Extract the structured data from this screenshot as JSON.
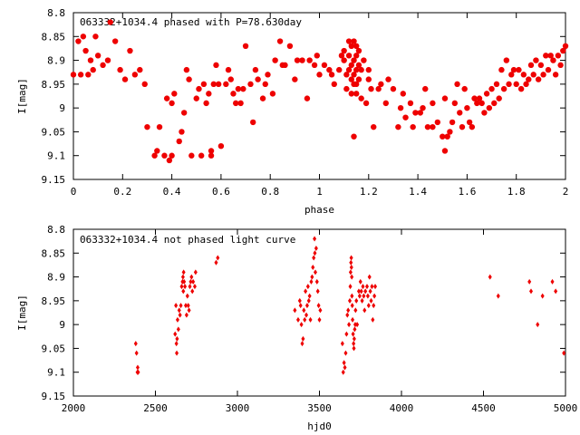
{
  "chart_data": [
    {
      "type": "scatter",
      "title": "063332+1034.4 phased with P=78.630day",
      "xlabel": "phase",
      "ylabel": "I[mag]",
      "xlim": [
        0,
        2
      ],
      "ylim": [
        8.8,
        9.15
      ],
      "y_reversed": true,
      "grid": false,
      "x_ticks": [
        "0",
        "0.2",
        "0.4",
        "0.6",
        "0.8",
        "1",
        "1.2",
        "1.4",
        "1.6",
        "1.8",
        "2"
      ],
      "y_ticks": [
        "8.8",
        "8.85",
        "8.9",
        "8.95",
        "9",
        "9.05",
        "9.1",
        "9.15"
      ],
      "marker_color": "#ee0000",
      "marker": "filled-circle",
      "points": [
        [
          0.0,
          8.93
        ],
        [
          0.02,
          8.86
        ],
        [
          0.03,
          8.93
        ],
        [
          0.04,
          8.85
        ],
        [
          0.05,
          8.88
        ],
        [
          0.06,
          8.93
        ],
        [
          0.07,
          8.9
        ],
        [
          0.08,
          8.92
        ],
        [
          0.09,
          8.85
        ],
        [
          0.1,
          8.89
        ],
        [
          0.12,
          8.91
        ],
        [
          0.14,
          8.9
        ],
        [
          0.15,
          8.82
        ],
        [
          0.17,
          8.86
        ],
        [
          0.19,
          8.92
        ],
        [
          0.21,
          8.94
        ],
        [
          0.23,
          8.88
        ],
        [
          0.25,
          8.93
        ],
        [
          0.27,
          8.92
        ],
        [
          0.29,
          8.95
        ],
        [
          0.3,
          9.04
        ],
        [
          0.33,
          9.1
        ],
        [
          0.34,
          9.09
        ],
        [
          0.35,
          9.04
        ],
        [
          0.37,
          9.1
        ],
        [
          0.38,
          8.98
        ],
        [
          0.39,
          9.11
        ],
        [
          0.4,
          9.1
        ],
        [
          0.4,
          8.99
        ],
        [
          0.41,
          8.97
        ],
        [
          0.43,
          9.07
        ],
        [
          0.44,
          9.05
        ],
        [
          0.45,
          9.01
        ],
        [
          0.46,
          8.92
        ],
        [
          0.47,
          8.94
        ],
        [
          0.48,
          9.1
        ],
        [
          0.5,
          8.98
        ],
        [
          0.51,
          8.96
        ],
        [
          0.52,
          9.1
        ],
        [
          0.53,
          8.95
        ],
        [
          0.54,
          8.99
        ],
        [
          0.55,
          8.97
        ],
        [
          0.56,
          9.1
        ],
        [
          0.56,
          9.09
        ],
        [
          0.57,
          8.95
        ],
        [
          0.58,
          8.91
        ],
        [
          0.59,
          8.95
        ],
        [
          0.6,
          9.08
        ],
        [
          0.62,
          8.95
        ],
        [
          0.63,
          8.92
        ],
        [
          0.64,
          8.94
        ],
        [
          0.65,
          8.97
        ],
        [
          0.66,
          8.99
        ],
        [
          0.67,
          8.96
        ],
        [
          0.68,
          8.99
        ],
        [
          0.69,
          8.96
        ],
        [
          0.7,
          8.87
        ],
        [
          0.72,
          8.95
        ],
        [
          0.73,
          9.03
        ],
        [
          0.74,
          8.92
        ],
        [
          0.75,
          8.94
        ],
        [
          0.77,
          8.98
        ],
        [
          0.78,
          8.95
        ],
        [
          0.79,
          8.93
        ],
        [
          0.81,
          8.97
        ],
        [
          0.82,
          8.9
        ],
        [
          0.84,
          8.86
        ],
        [
          0.85,
          8.91
        ],
        [
          0.86,
          8.91
        ],
        [
          0.88,
          8.87
        ],
        [
          0.9,
          8.94
        ],
        [
          0.91,
          8.9
        ],
        [
          0.93,
          8.9
        ],
        [
          0.95,
          8.98
        ],
        [
          0.96,
          8.9
        ],
        [
          0.98,
          8.91
        ],
        [
          0.99,
          8.89
        ],
        [
          1.0,
          8.93
        ],
        [
          1.02,
          8.91
        ],
        [
          1.04,
          8.92
        ],
        [
          1.05,
          8.93
        ],
        [
          1.06,
          8.95
        ],
        [
          1.08,
          8.92
        ],
        [
          1.09,
          8.89
        ],
        [
          1.1,
          8.88
        ],
        [
          1.1,
          8.9
        ],
        [
          1.11,
          8.93
        ],
        [
          1.11,
          8.96
        ],
        [
          1.12,
          8.86
        ],
        [
          1.12,
          8.89
        ],
        [
          1.12,
          8.92
        ],
        [
          1.13,
          8.87
        ],
        [
          1.13,
          8.91
        ],
        [
          1.13,
          8.94
        ],
        [
          1.13,
          8.97
        ],
        [
          1.14,
          8.86
        ],
        [
          1.14,
          8.9
        ],
        [
          1.14,
          8.93
        ],
        [
          1.14,
          8.95
        ],
        [
          1.14,
          9.06
        ],
        [
          1.15,
          8.87
        ],
        [
          1.15,
          8.89
        ],
        [
          1.15,
          8.92
        ],
        [
          1.15,
          8.95
        ],
        [
          1.15,
          8.97
        ],
        [
          1.16,
          8.88
        ],
        [
          1.16,
          8.91
        ],
        [
          1.16,
          8.94
        ],
        [
          1.17,
          8.92
        ],
        [
          1.17,
          8.98
        ],
        [
          1.18,
          8.9
        ],
        [
          1.19,
          8.99
        ],
        [
          1.2,
          8.92
        ],
        [
          1.2,
          8.94
        ],
        [
          1.21,
          8.96
        ],
        [
          1.22,
          9.04
        ],
        [
          1.24,
          8.96
        ],
        [
          1.25,
          8.95
        ],
        [
          1.27,
          8.99
        ],
        [
          1.28,
          8.94
        ],
        [
          1.3,
          8.96
        ],
        [
          1.32,
          9.04
        ],
        [
          1.33,
          9.0
        ],
        [
          1.34,
          8.97
        ],
        [
          1.35,
          9.02
        ],
        [
          1.37,
          8.99
        ],
        [
          1.38,
          9.04
        ],
        [
          1.39,
          9.01
        ],
        [
          1.41,
          9.01
        ],
        [
          1.42,
          9.0
        ],
        [
          1.43,
          8.96
        ],
        [
          1.44,
          9.04
        ],
        [
          1.46,
          8.99
        ],
        [
          1.46,
          9.04
        ],
        [
          1.48,
          9.03
        ],
        [
          1.5,
          9.06
        ],
        [
          1.51,
          9.09
        ],
        [
          1.51,
          8.98
        ],
        [
          1.52,
          9.06
        ],
        [
          1.53,
          9.05
        ],
        [
          1.54,
          9.03
        ],
        [
          1.55,
          8.99
        ],
        [
          1.56,
          8.95
        ],
        [
          1.57,
          9.01
        ],
        [
          1.58,
          9.04
        ],
        [
          1.59,
          8.96
        ],
        [
          1.6,
          9.0
        ],
        [
          1.61,
          9.03
        ],
        [
          1.62,
          9.04
        ],
        [
          1.63,
          8.98
        ],
        [
          1.64,
          8.99
        ],
        [
          1.65,
          8.98
        ],
        [
          1.66,
          8.99
        ],
        [
          1.67,
          9.01
        ],
        [
          1.68,
          8.97
        ],
        [
          1.69,
          9.0
        ],
        [
          1.7,
          8.96
        ],
        [
          1.71,
          8.99
        ],
        [
          1.72,
          8.95
        ],
        [
          1.73,
          8.98
        ],
        [
          1.74,
          8.92
        ],
        [
          1.75,
          8.96
        ],
        [
          1.76,
          8.9
        ],
        [
          1.77,
          8.95
        ],
        [
          1.78,
          8.93
        ],
        [
          1.79,
          8.92
        ],
        [
          1.8,
          8.95
        ],
        [
          1.81,
          8.92
        ],
        [
          1.82,
          8.96
        ],
        [
          1.83,
          8.93
        ],
        [
          1.84,
          8.95
        ],
        [
          1.85,
          8.94
        ],
        [
          1.86,
          8.91
        ],
        [
          1.87,
          8.93
        ],
        [
          1.88,
          8.9
        ],
        [
          1.89,
          8.94
        ],
        [
          1.9,
          8.91
        ],
        [
          1.91,
          8.93
        ],
        [
          1.92,
          8.89
        ],
        [
          1.93,
          8.92
        ],
        [
          1.94,
          8.89
        ],
        [
          1.95,
          8.9
        ],
        [
          1.96,
          8.93
        ],
        [
          1.97,
          8.89
        ],
        [
          1.98,
          8.91
        ],
        [
          1.99,
          8.88
        ],
        [
          2.0,
          8.87
        ]
      ]
    },
    {
      "type": "scatter",
      "title": "063332+1034.4 not phased light curve",
      "xlabel": "hjd0",
      "ylabel": "I[mag]",
      "xlim": [
        2000,
        5000
      ],
      "ylim": [
        8.8,
        9.15
      ],
      "y_reversed": true,
      "grid": false,
      "x_ticks": [
        "2000",
        "2500",
        "3000",
        "3500",
        "4000",
        "4500",
        "5000"
      ],
      "y_ticks": [
        "8.8",
        "8.85",
        "8.9",
        "8.95",
        "9",
        "9.05",
        "9.1",
        "9.15"
      ],
      "marker_color": "#ee0000",
      "marker": "small-diamond",
      "points": [
        [
          2380,
          9.04
        ],
        [
          2385,
          9.06
        ],
        [
          2390,
          9.1
        ],
        [
          2392,
          9.09
        ],
        [
          2395,
          9.1
        ],
        [
          2620,
          9.02
        ],
        [
          2625,
          8.96
        ],
        [
          2628,
          9.04
        ],
        [
          2630,
          9.06
        ],
        [
          2632,
          9.03
        ],
        [
          2635,
          8.99
        ],
        [
          2640,
          9.01
        ],
        [
          2645,
          8.97
        ],
        [
          2650,
          8.98
        ],
        [
          2655,
          8.96
        ],
        [
          2660,
          8.92
        ],
        [
          2665,
          8.91
        ],
        [
          2668,
          8.9
        ],
        [
          2670,
          8.93
        ],
        [
          2672,
          8.89
        ],
        [
          2675,
          8.91
        ],
        [
          2680,
          8.92
        ],
        [
          2685,
          8.96
        ],
        [
          2690,
          8.98
        ],
        [
          2695,
          8.94
        ],
        [
          2700,
          8.96
        ],
        [
          2705,
          8.97
        ],
        [
          2710,
          8.92
        ],
        [
          2715,
          8.91
        ],
        [
          2720,
          8.9
        ],
        [
          2725,
          8.93
        ],
        [
          2730,
          8.91
        ],
        [
          2740,
          8.92
        ],
        [
          2745,
          8.89
        ],
        [
          2870,
          8.87
        ],
        [
          2880,
          8.86
        ],
        [
          3350,
          8.97
        ],
        [
          3370,
          8.99
        ],
        [
          3380,
          8.95
        ],
        [
          3385,
          8.96
        ],
        [
          3390,
          9.0
        ],
        [
          3395,
          9.04
        ],
        [
          3400,
          9.03
        ],
        [
          3405,
          8.97
        ],
        [
          3410,
          8.99
        ],
        [
          3415,
          8.93
        ],
        [
          3420,
          8.98
        ],
        [
          3425,
          8.96
        ],
        [
          3430,
          8.92
        ],
        [
          3435,
          8.95
        ],
        [
          3440,
          8.94
        ],
        [
          3445,
          8.99
        ],
        [
          3450,
          8.91
        ],
        [
          3455,
          8.9
        ],
        [
          3460,
          8.88
        ],
        [
          3465,
          8.86
        ],
        [
          3470,
          8.82
        ],
        [
          3472,
          8.85
        ],
        [
          3475,
          8.89
        ],
        [
          3480,
          8.84
        ],
        [
          3485,
          8.91
        ],
        [
          3490,
          8.93
        ],
        [
          3495,
          8.96
        ],
        [
          3500,
          8.99
        ],
        [
          3505,
          8.97
        ],
        [
          3640,
          9.04
        ],
        [
          3645,
          9.1
        ],
        [
          3650,
          9.08
        ],
        [
          3655,
          9.09
        ],
        [
          3660,
          9.06
        ],
        [
          3665,
          9.02
        ],
        [
          3670,
          8.98
        ],
        [
          3675,
          8.97
        ],
        [
          3680,
          9.0
        ],
        [
          3685,
          8.95
        ],
        [
          3688,
          8.92
        ],
        [
          3690,
          8.89
        ],
        [
          3692,
          8.87
        ],
        [
          3694,
          8.86
        ],
        [
          3695,
          8.88
        ],
        [
          3697,
          8.9
        ],
        [
          3698,
          8.94
        ],
        [
          3700,
          8.96
        ],
        [
          3702,
          8.99
        ],
        [
          3705,
          9.02
        ],
        [
          3708,
          9.04
        ],
        [
          3710,
          9.05
        ],
        [
          3712,
          9.03
        ],
        [
          3715,
          9.01
        ],
        [
          3718,
          9.0
        ],
        [
          3720,
          8.97
        ],
        [
          3725,
          8.95
        ],
        [
          3730,
          9.0
        ],
        [
          3740,
          8.93
        ],
        [
          3745,
          8.94
        ],
        [
          3750,
          8.91
        ],
        [
          3755,
          8.93
        ],
        [
          3760,
          8.95
        ],
        [
          3765,
          8.92
        ],
        [
          3770,
          8.94
        ],
        [
          3775,
          8.97
        ],
        [
          3780,
          8.93
        ],
        [
          3790,
          8.92
        ],
        [
          3795,
          8.94
        ],
        [
          3800,
          8.96
        ],
        [
          3805,
          8.9
        ],
        [
          3810,
          8.93
        ],
        [
          3815,
          8.95
        ],
        [
          3820,
          8.92
        ],
        [
          3825,
          8.99
        ],
        [
          3830,
          8.96
        ],
        [
          3835,
          8.94
        ],
        [
          3840,
          8.92
        ],
        [
          4540,
          8.9
        ],
        [
          4590,
          8.94
        ],
        [
          4780,
          8.91
        ],
        [
          4790,
          8.93
        ],
        [
          4830,
          9.0
        ],
        [
          4860,
          8.94
        ],
        [
          4920,
          8.91
        ],
        [
          4940,
          8.93
        ],
        [
          4990,
          9.06
        ]
      ]
    }
  ]
}
